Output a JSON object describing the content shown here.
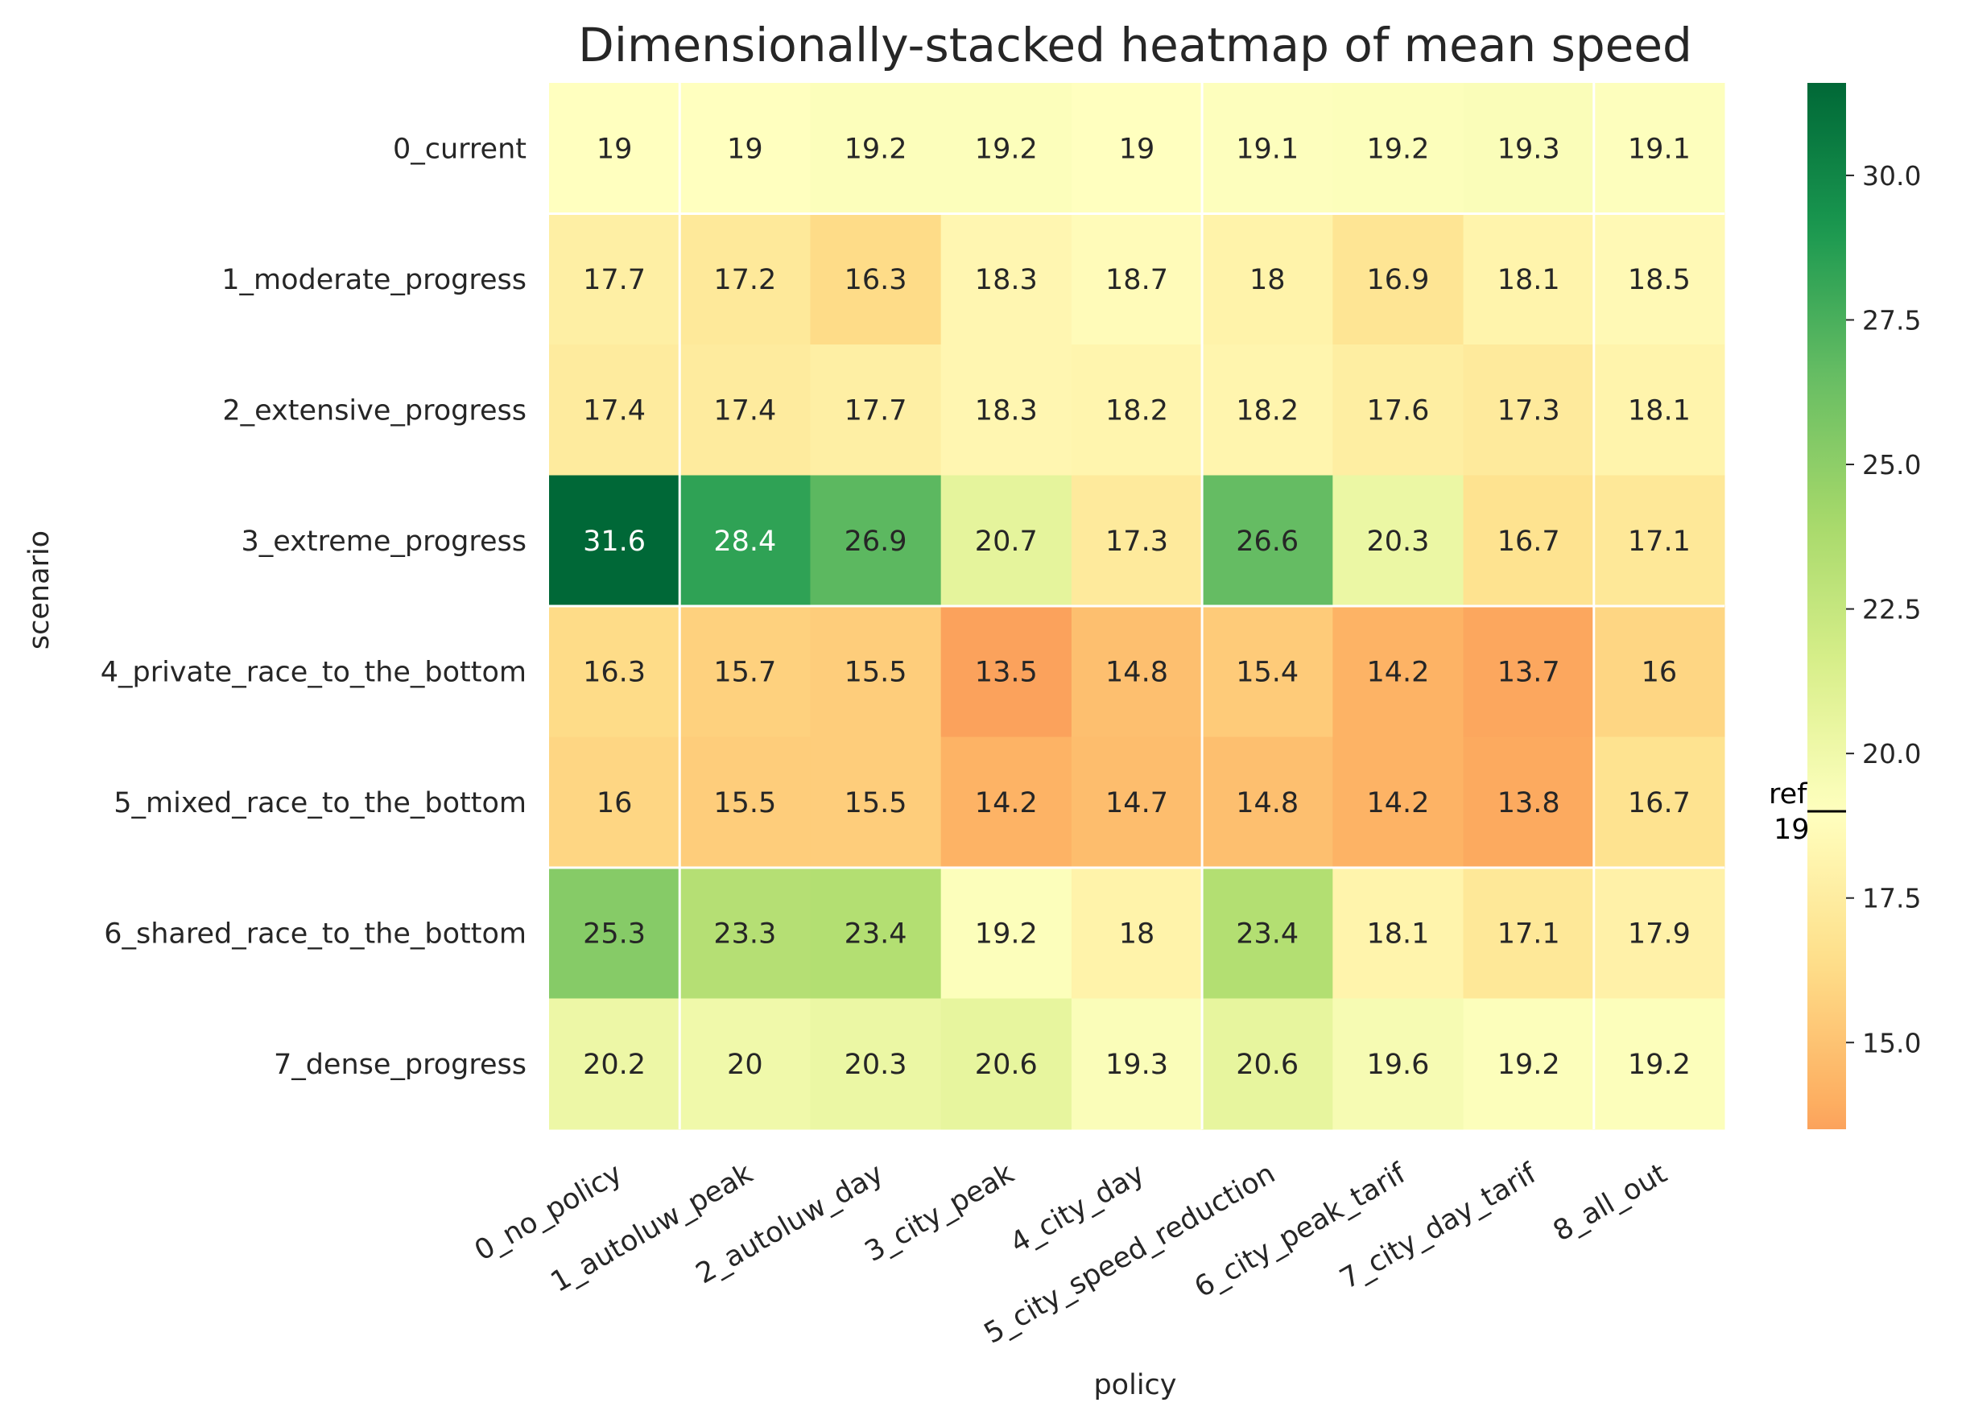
{
  "chart_data": {
    "type": "heatmap",
    "title": "Dimensionally-stacked heatmap of mean speed",
    "xlabel": "policy",
    "ylabel": "scenario",
    "x_categories": [
      "0_no_policy",
      "1_autoluw_peak",
      "2_autoluw_day",
      "3_city_peak",
      "4_city_day",
      "5_city_speed_reduction",
      "6_city_peak_tarif",
      "7_city_day_tarif",
      "8_all_out"
    ],
    "y_categories": [
      "0_current",
      "1_moderate_progress",
      "2_extensive_progress",
      "3_extreme_progress",
      "4_private_race_to_the_bottom",
      "5_mixed_race_to_the_bottom",
      "6_shared_race_to_the_bottom",
      "7_dense_progress"
    ],
    "values": [
      [
        19,
        19,
        19.2,
        19.2,
        19,
        19.1,
        19.2,
        19.3,
        19.1
      ],
      [
        17.7,
        17.2,
        16.3,
        18.3,
        18.7,
        18,
        16.9,
        18.1,
        18.5
      ],
      [
        17.4,
        17.4,
        17.7,
        18.3,
        18.2,
        18.2,
        17.6,
        17.3,
        18.1
      ],
      [
        31.6,
        28.4,
        26.9,
        20.7,
        17.3,
        26.6,
        20.3,
        16.7,
        17.1
      ],
      [
        16.3,
        15.7,
        15.5,
        13.5,
        14.8,
        15.4,
        14.2,
        13.7,
        16
      ],
      [
        16,
        15.5,
        15.5,
        14.2,
        14.7,
        14.8,
        14.2,
        13.8,
        16.7
      ],
      [
        25.3,
        23.3,
        23.4,
        19.2,
        18,
        23.4,
        18.1,
        17.1,
        17.9
      ],
      [
        20.2,
        20,
        20.3,
        20.6,
        19.3,
        20.6,
        19.6,
        19.2,
        19.2
      ]
    ],
    "colormap": "RdYlGn (centered at reference)",
    "color_range": [
      13.5,
      31.6
    ],
    "colorbar_ticks": [
      "15.0",
      "17.5",
      "20.0",
      "22.5",
      "25.0",
      "27.5",
      "30.0"
    ],
    "colorbar_tick_values": [
      15,
      17.5,
      20,
      22.5,
      25,
      27.5,
      30
    ],
    "reference_label": "ref",
    "reference_value_label": "19",
    "reference_value": 19,
    "separators": {
      "vertical_after_columns": [
        0,
        4,
        7
      ],
      "horizontal_after_rows": [
        0,
        3,
        5
      ]
    }
  }
}
